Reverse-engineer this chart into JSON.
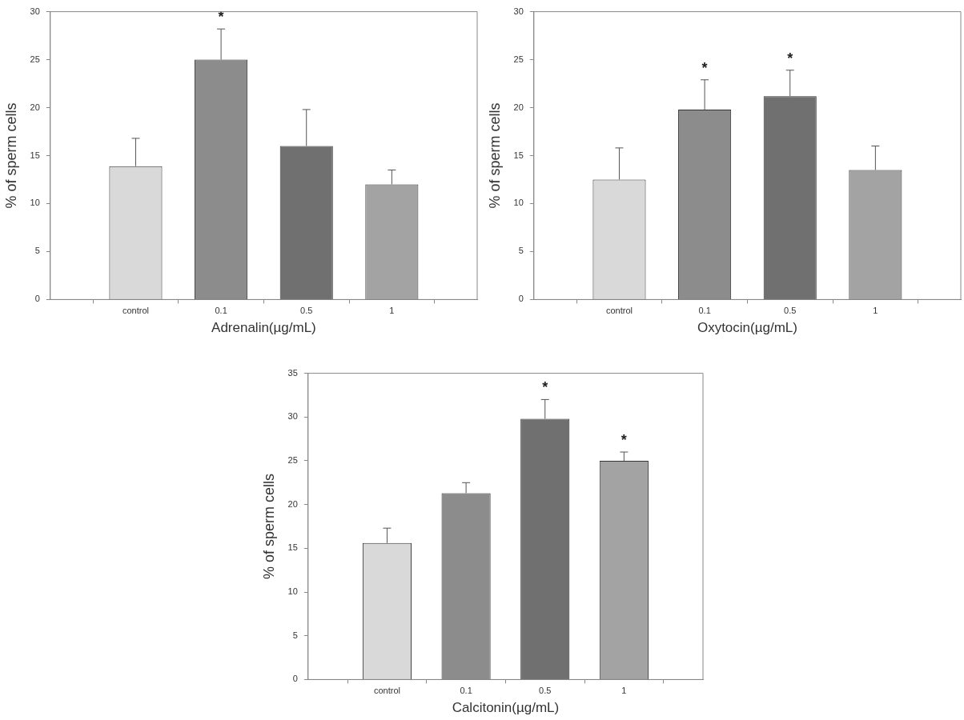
{
  "chart_data": [
    {
      "type": "bar",
      "xlabel": "Adrenalin(µg/mL)",
      "ylabel": "% of sperm cells",
      "categories": [
        "control",
        "0.1",
        "0.5",
        "1"
      ],
      "values": [
        13.9,
        25,
        16,
        12
      ],
      "errors": [
        2.9,
        3.2,
        3.8,
        1.5
      ],
      "colors": [
        "#d9d9d9",
        "#8c8c8c",
        "#707070",
        "#a3a3a3"
      ],
      "ylim": [
        0,
        30
      ],
      "yticks": [
        0,
        5,
        10,
        15,
        20,
        25,
        30
      ],
      "grid": false,
      "legend": false,
      "annotations": [
        {
          "text": "*",
          "x": "0.1",
          "y": 25
        }
      ]
    },
    {
      "type": "bar",
      "xlabel": "Oxytocin(µg/mL)",
      "ylabel": "% of sperm cells",
      "categories": [
        "control",
        "0.1",
        "0.5",
        "1"
      ],
      "values": [
        12.5,
        19.8,
        21.2,
        13.5
      ],
      "errors": [
        3.3,
        3.1,
        2.7,
        2.5
      ],
      "colors": [
        "#d9d9d9",
        "#8c8c8c",
        "#707070",
        "#a3a3a3"
      ],
      "ylim": [
        0,
        30
      ],
      "yticks": [
        0,
        5,
        10,
        15,
        20,
        25,
        30
      ],
      "grid": false,
      "legend": false,
      "annotations": [
        {
          "text": "*",
          "x": "0.1",
          "y": 19.8
        },
        {
          "text": "*",
          "x": "0.5",
          "y": 21.2
        }
      ]
    },
    {
      "type": "bar",
      "xlabel": "Calcitonin(µg/mL)",
      "ylabel": "% of sperm cells",
      "categories": [
        "control",
        "0.1",
        "0.5",
        "1"
      ],
      "values": [
        15.6,
        21.3,
        29.8,
        25
      ],
      "errors": [
        1.7,
        1.2,
        2.2,
        1
      ],
      "colors": [
        "#d9d9d9",
        "#8c8c8c",
        "#707070",
        "#a3a3a3"
      ],
      "ylim": [
        0,
        35
      ],
      "yticks": [
        0,
        5,
        10,
        15,
        20,
        25,
        30,
        35
      ],
      "grid": false,
      "legend": false,
      "annotations": [
        {
          "text": "*",
          "x": "0.5",
          "y": 29.8
        },
        {
          "text": "*",
          "x": "1",
          "y": 25
        }
      ]
    }
  ]
}
